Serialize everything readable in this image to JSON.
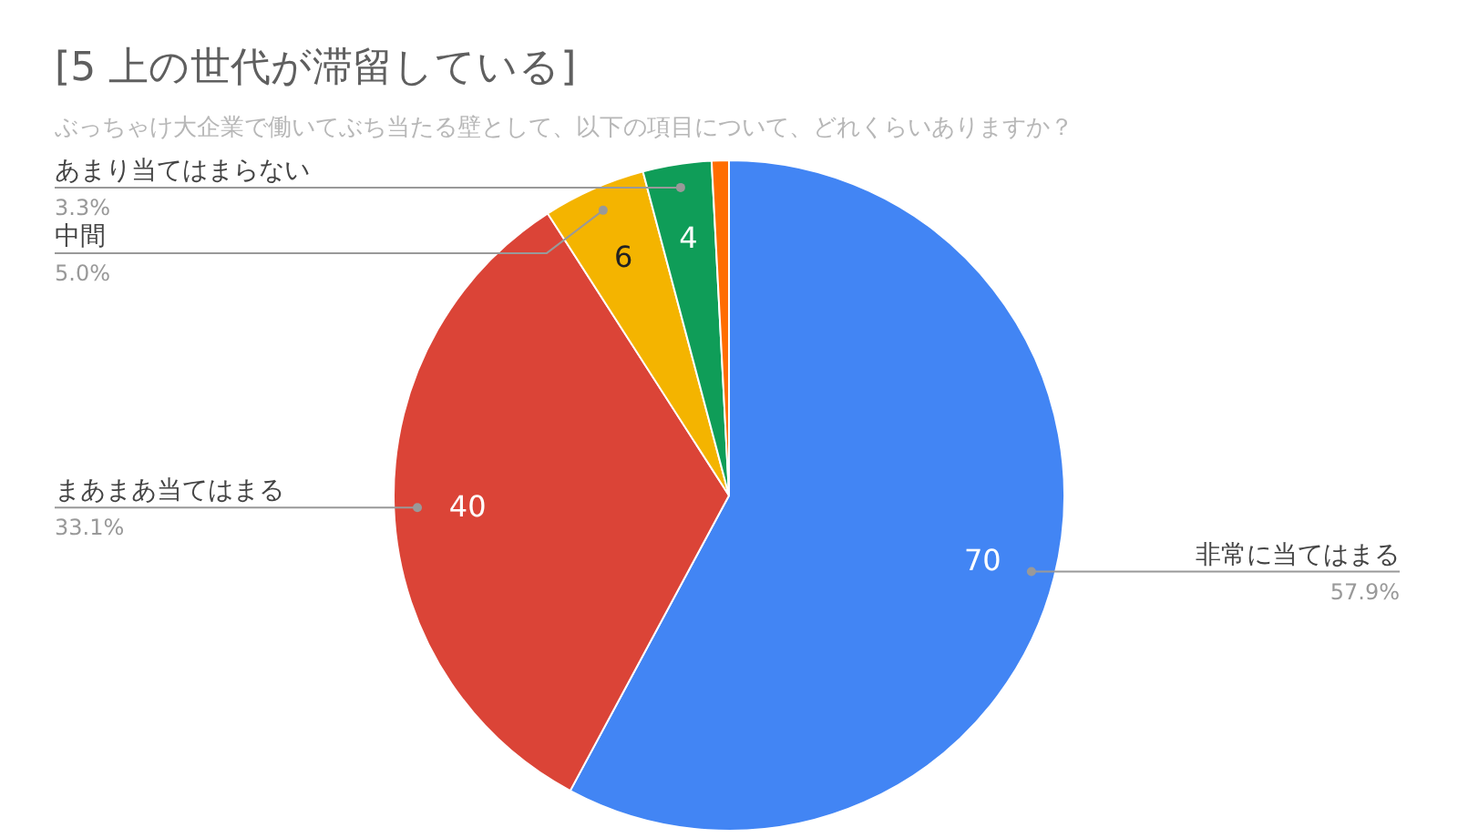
{
  "chart_data": {
    "type": "pie",
    "title": "[5 上の世代が滞留している]",
    "subtitle": "ぶっちゃけ大企業で働いてぶち当たる壁として、以下の項目について、どれくらいありますか？",
    "categories": [
      "非常に当てはまる",
      "まあまあ当てはまる",
      "中間",
      "あまり当てはまらない",
      null
    ],
    "values": [
      70,
      40,
      6,
      4,
      1
    ],
    "colors": [
      "#4285f4",
      "#db4437",
      "#f4b400",
      "#0f9d58",
      "#ff6d01"
    ],
    "value_labels": [
      "70",
      "40",
      "6",
      "4",
      null
    ],
    "annotations": [
      "57.9%",
      "33.1%",
      "5.0%",
      "3.3%"
    ]
  }
}
